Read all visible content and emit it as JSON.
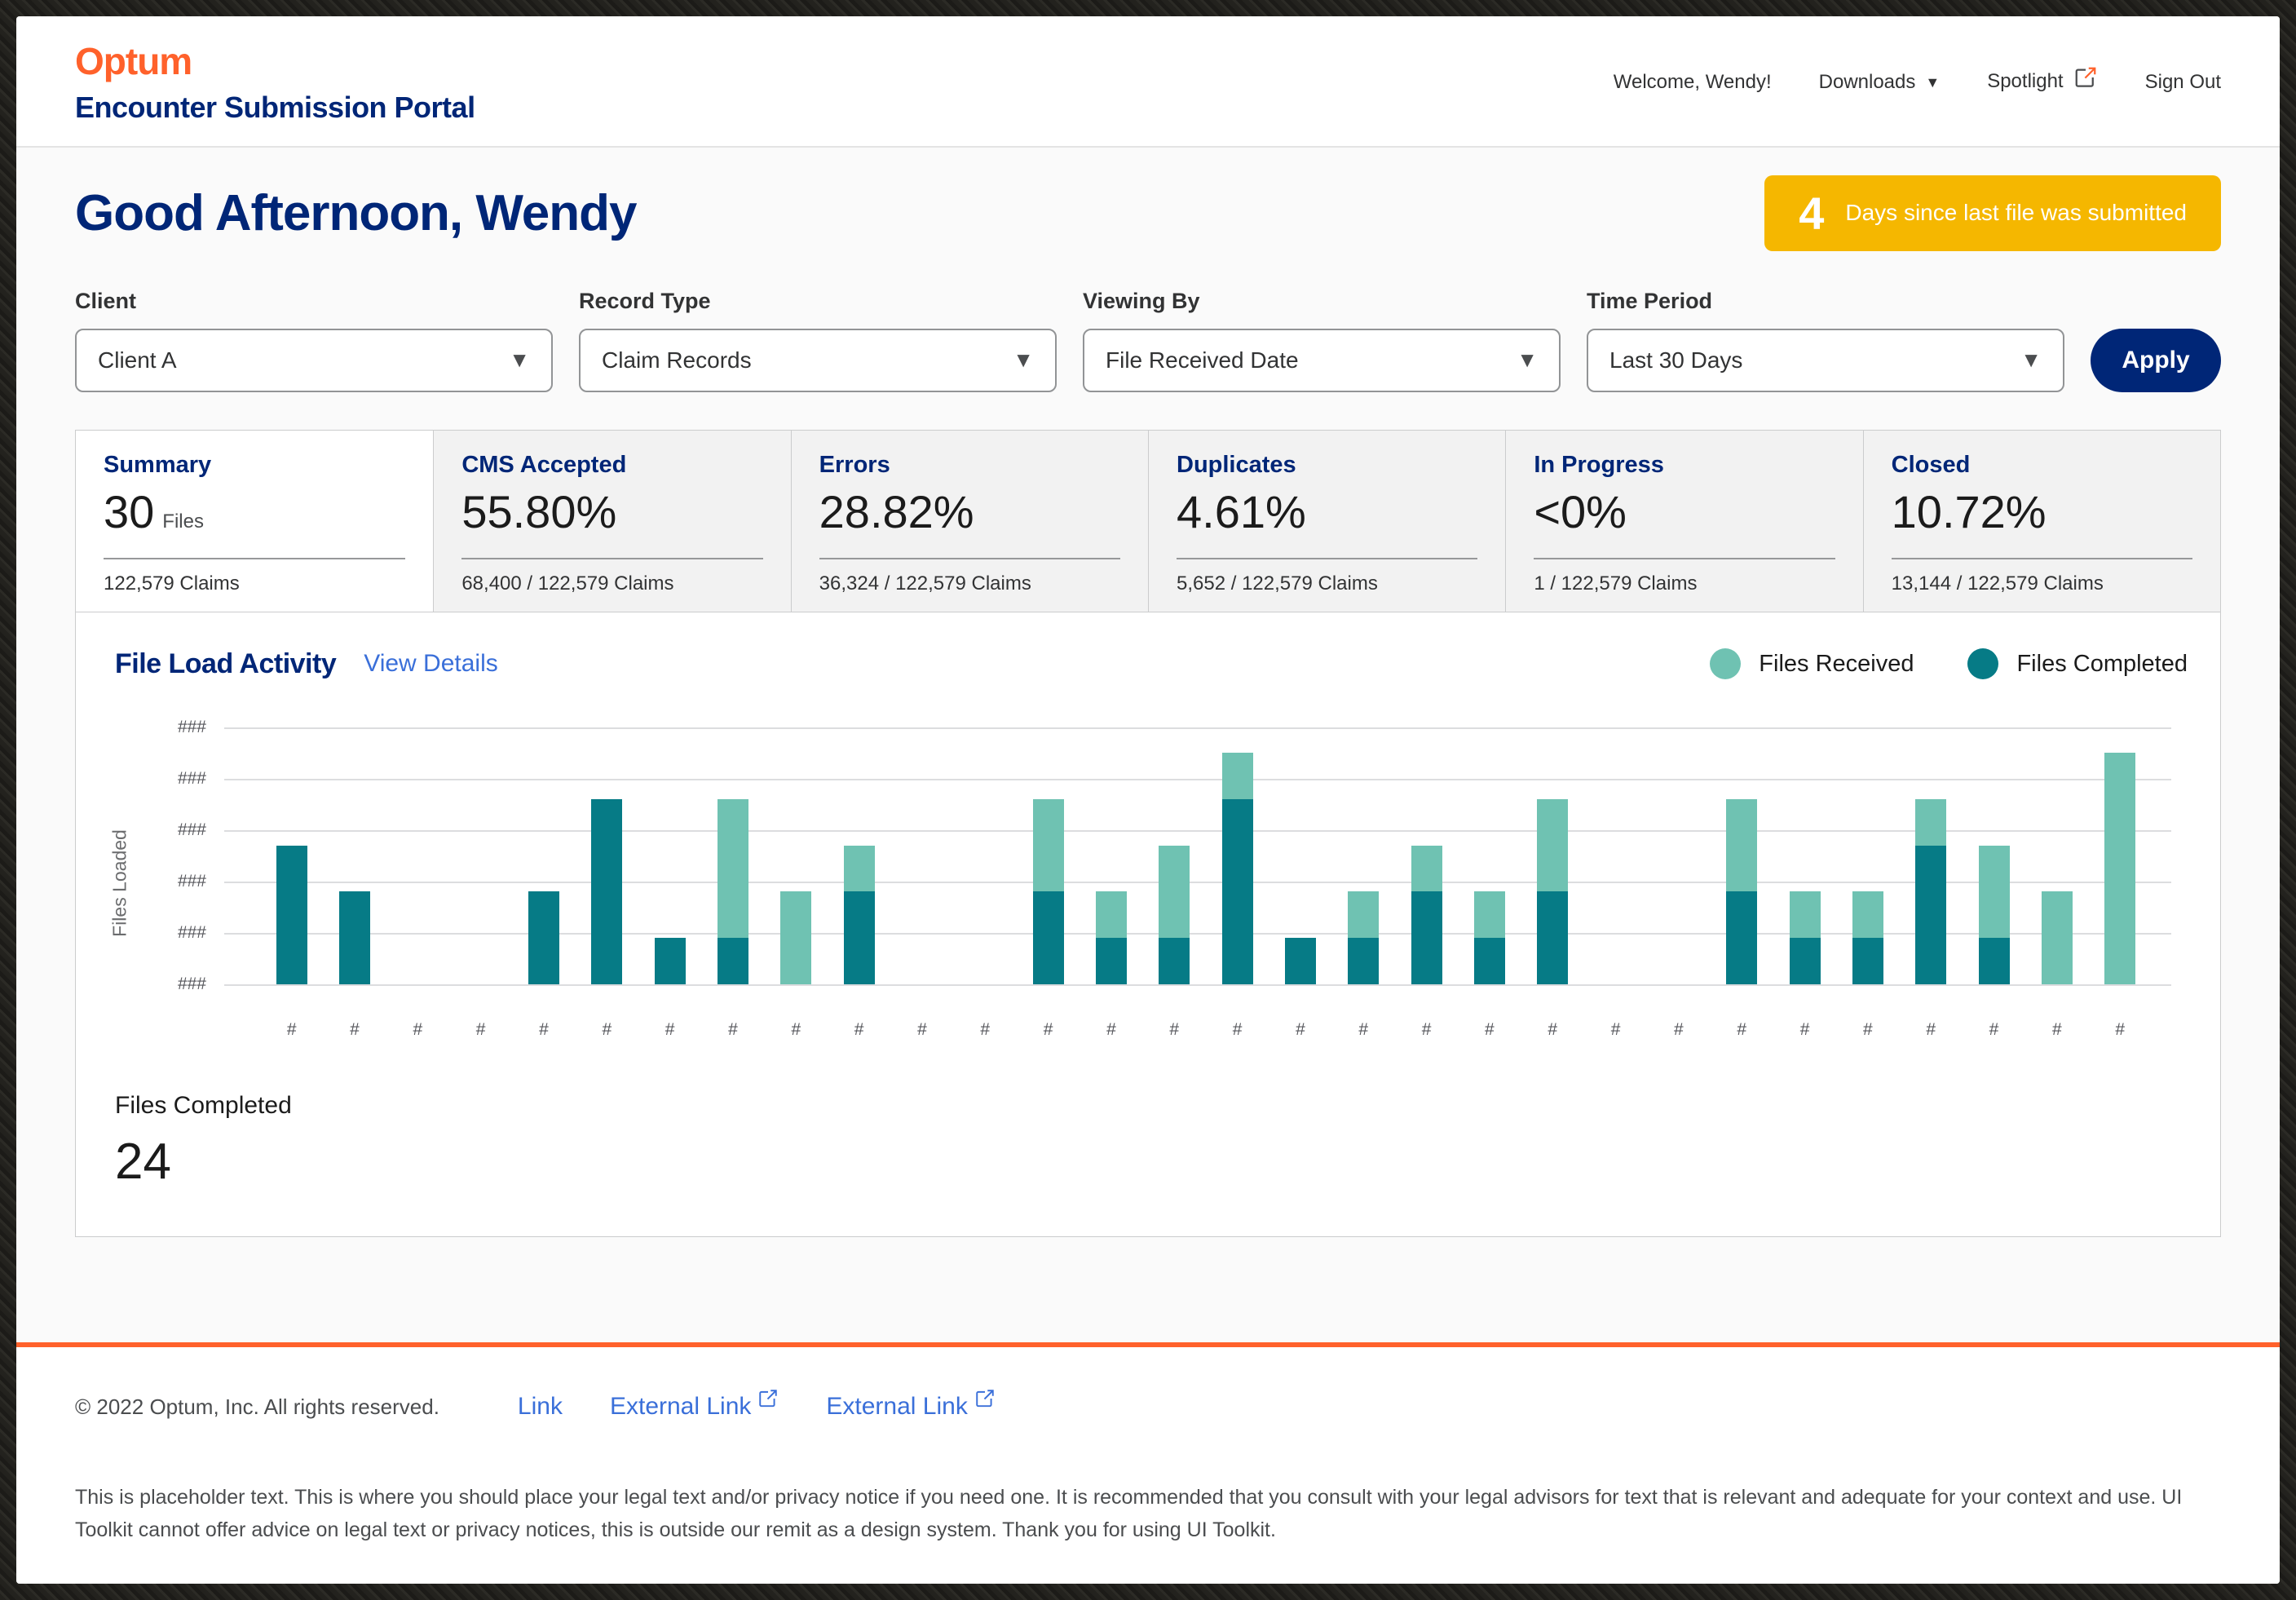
{
  "header": {
    "logo": "Optum",
    "title": "Encounter Submission Portal",
    "nav": {
      "welcome": "Welcome, Wendy!",
      "downloads": "Downloads",
      "spotlight": "Spotlight",
      "sign_out": "Sign Out"
    }
  },
  "main": {
    "greeting": "Good Afternoon, Wendy",
    "badge": {
      "value": "4",
      "label": "Days since last file was submitted"
    },
    "filters": [
      {
        "label": "Client",
        "value": "Client A"
      },
      {
        "label": "Record Type",
        "value": "Claim Records"
      },
      {
        "label": "Viewing By",
        "value": "File Received Date"
      },
      {
        "label": "Time Period",
        "value": "Last 30 Days"
      }
    ],
    "apply_label": "Apply",
    "stats": [
      {
        "title": "Summary",
        "value": "30",
        "unit": "Files",
        "claims": "122,579 Claims",
        "active": true
      },
      {
        "title": "CMS Accepted",
        "value": "55.80%",
        "claims": "68,400 / 122,579 Claims",
        "active": false
      },
      {
        "title": "Errors",
        "value": "28.82%",
        "claims": "36,324 / 122,579 Claims",
        "active": false
      },
      {
        "title": "Duplicates",
        "value": "4.61%",
        "claims": "5,652 / 122,579 Claims",
        "active": false
      },
      {
        "title": "In Progress",
        "value": "<0%",
        "claims": "1 / 122,579 Claims",
        "active": false
      },
      {
        "title": "Closed",
        "value": "10.72%",
        "claims": "13,144 / 122,579 Claims",
        "active": false
      }
    ],
    "chart_section": {
      "title": "File Load Activity",
      "view_details": "View Details",
      "legend": [
        {
          "label": "Files Received",
          "color": "#6FC2B2"
        },
        {
          "label": "Files Completed",
          "color": "#067B86"
        }
      ],
      "files_completed_label": "Files Completed",
      "files_completed_value": "24"
    }
  },
  "chart_data": {
    "type": "bar",
    "stacked": true,
    "title": "File Load Activity",
    "ylabel": "Files Loaded",
    "xlabel": "",
    "ylim": [
      0,
      5
    ],
    "gridlines": true,
    "y_tick_label_masked": "###",
    "x_tick_label_masked": "#",
    "y_ticks_count": 6,
    "x": [
      1,
      2,
      3,
      4,
      5,
      6,
      7,
      8,
      9,
      10,
      11,
      12,
      13,
      14,
      15,
      16,
      17,
      18,
      19,
      20,
      21,
      22,
      23,
      24,
      25,
      26,
      27,
      28,
      29,
      30
    ],
    "series": [
      {
        "name": "Files Completed",
        "color": "#067B86",
        "values": [
          2.7,
          1.8,
          0,
          0,
          1.8,
          3.6,
          0.9,
          0.9,
          0,
          1.8,
          0,
          0,
          1.8,
          0.9,
          0.9,
          3.6,
          0.9,
          0.9,
          1.8,
          0.9,
          1.8,
          0,
          0,
          1.8,
          0.9,
          0.9,
          2.7,
          0.9,
          0,
          0
        ]
      },
      {
        "name": "Files Received",
        "color": "#6FC2B2",
        "values": [
          0,
          0,
          0,
          0,
          0,
          0,
          0,
          2.7,
          1.8,
          0.9,
          0,
          0,
          1.8,
          0.9,
          1.8,
          0.9,
          0,
          0.9,
          0.9,
          0.9,
          1.8,
          0,
          0,
          1.8,
          0.9,
          0.9,
          0.9,
          1.8,
          1.8,
          4.5
        ]
      }
    ],
    "legend_position": "top-right",
    "note": "Axis tick labels are masked in the UI as ### (y) and # (x); values estimated in gridline units (1 unit = 1 gridline step)."
  },
  "footer": {
    "copyright": "© 2022 Optum, Inc. All rights reserved.",
    "links": [
      {
        "label": "Link",
        "external": false
      },
      {
        "label": "External Link",
        "external": true
      },
      {
        "label": "External Link",
        "external": true
      }
    ],
    "legal": "This is placeholder text. This is where you should place your legal text and/or privacy notice if you need one. It is recommended that you consult with your legal advisors for text that is relevant and adequate for your context and use. UI Toolkit cannot offer advice on legal text or privacy notices, this is outside our remit as a design system. Thank you for using UI Toolkit."
  },
  "colors": {
    "brand_orange": "#FF612B",
    "brand_navy": "#002677",
    "badge_gold": "#F5B700",
    "link_blue": "#3A6FD9",
    "teal_dark": "#067B86",
    "teal_light": "#6FC2B2"
  }
}
